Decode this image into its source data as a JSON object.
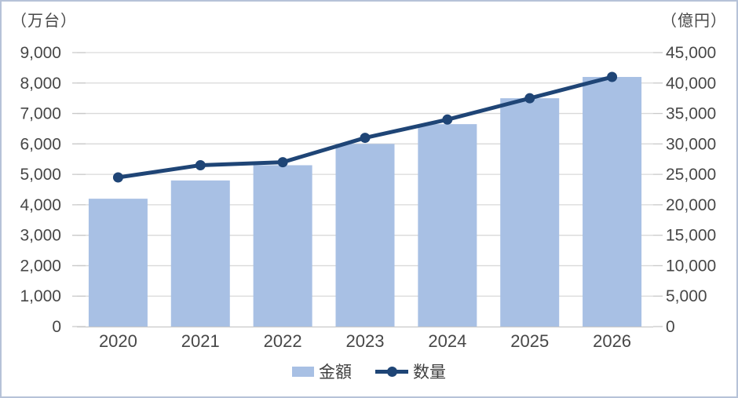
{
  "chart_data": {
    "type": "combo-bar-line",
    "title": "",
    "categories": [
      "2020",
      "2021",
      "2022",
      "2023",
      "2024",
      "2025",
      "2026"
    ],
    "series": [
      {
        "name": "金額",
        "type": "bar",
        "axis": "right",
        "unit": "億円",
        "color": "#a8c0e4",
        "values": [
          21000,
          24000,
          26500,
          30000,
          33250,
          37500,
          41000
        ]
      },
      {
        "name": "数量",
        "type": "line",
        "axis": "left",
        "unit": "万台",
        "color": "#1f4576",
        "values": [
          4900,
          5300,
          5400,
          6200,
          6800,
          7500,
          8200
        ]
      }
    ],
    "left_axis": {
      "unit_label": "（万台）",
      "min": 0,
      "max": 9000,
      "step": 1000
    },
    "right_axis": {
      "unit_label": "（億円）",
      "min": 0,
      "max": 45000,
      "step": 5000
    },
    "grid": true,
    "legend_position": "bottom",
    "colors": {
      "grid": "#d9d9d9",
      "tick": "#c9c9c9",
      "axis_text": "#474747",
      "border": "#b6c2d8",
      "background": "#ffffff"
    }
  },
  "legend": {
    "items": [
      {
        "label": "金額"
      },
      {
        "label": "数量"
      }
    ]
  }
}
